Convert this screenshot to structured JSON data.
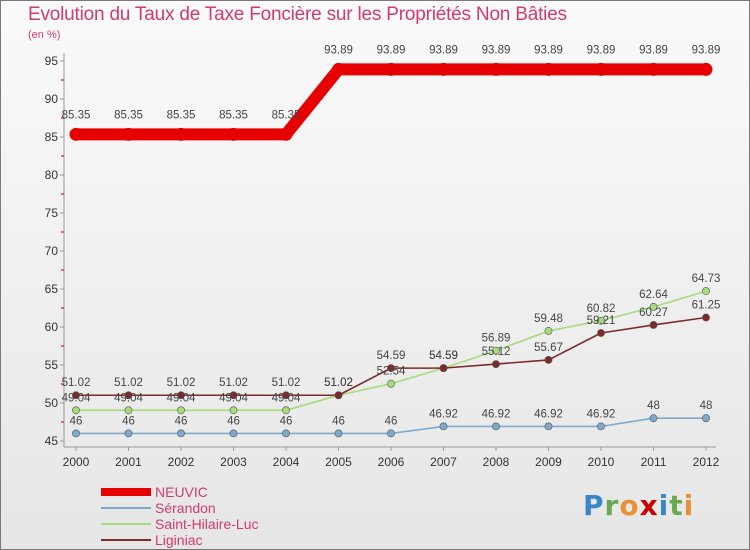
{
  "header": {
    "title": "Evolution du Taux de Taxe Foncière sur les Propriétés Non Bâties",
    "subtitle": "(en %)"
  },
  "logo": {
    "letters": [
      "P",
      "r",
      "o",
      "x",
      "i",
      "t",
      "i"
    ],
    "colors": [
      "#3a86c8",
      "#6aa84f",
      "#e69138",
      "#cc0000",
      "#3a86c8",
      "#6aa84f",
      "#e69138"
    ]
  },
  "chart_data": {
    "type": "line",
    "title": "Evolution du Taux de Taxe Foncière sur les Propriétés Non Bâties",
    "ylabel": "(en %)",
    "xlabel": "",
    "ylim": [
      45,
      95
    ],
    "yticks": [
      "45",
      "50",
      "55",
      "60",
      "65",
      "70",
      "75",
      "80",
      "85",
      "90",
      "95"
    ],
    "categories": [
      "2000",
      "2001",
      "2002",
      "2003",
      "2004",
      "2005",
      "2006",
      "2007",
      "2008",
      "2009",
      "2010",
      "2011",
      "2012"
    ],
    "series": [
      {
        "name": "NEUVIC",
        "color": "#e60000",
        "values": [
          85.35,
          85.35,
          85.35,
          85.35,
          85.35,
          93.89,
          93.89,
          93.89,
          93.89,
          93.89,
          93.89,
          93.89,
          93.89
        ],
        "labels": [
          "85.35",
          "85.35",
          "85.35",
          "85.35",
          "85.35",
          "93.89",
          "93.89",
          "93.89",
          "93.89",
          "93.89",
          "93.89",
          "93.89",
          "93.89"
        ]
      },
      {
        "name": "Sérandon",
        "color": "#7ea9cf",
        "values": [
          46,
          46,
          46,
          46,
          46,
          46,
          46,
          46.92,
          46.92,
          46.92,
          46.92,
          48,
          48
        ],
        "labels": [
          "46",
          "46",
          "46",
          "46",
          "46",
          "46",
          "46",
          "46.92",
          "46.92",
          "46.92",
          "46.92",
          "48",
          "48"
        ]
      },
      {
        "name": "Saint-Hilaire-Luc",
        "color": "#a6dc7a",
        "values": [
          49.04,
          49.04,
          49.04,
          49.04,
          49.04,
          51.02,
          52.54,
          54.59,
          56.89,
          59.48,
          60.82,
          62.64,
          64.73
        ],
        "labels": [
          "49.04",
          "49.04",
          "49.04",
          "49.04",
          "49.04",
          "51.02",
          "52.54",
          "54.59",
          "56.89",
          "59.48",
          "60.82",
          "62.64",
          "64.73"
        ]
      },
      {
        "name": "Liginiac",
        "color": "#7b2b2b",
        "values": [
          51.02,
          51.02,
          51.02,
          51.02,
          51.02,
          51.02,
          54.59,
          54.59,
          55.12,
          55.67,
          59.21,
          60.27,
          61.25
        ],
        "labels": [
          "51.02",
          "51.02",
          "51.02",
          "51.02",
          "51.02",
          "51.02",
          "54.59",
          "54.59",
          "55.12",
          "55.67",
          "59.21",
          "60.27",
          "61.25"
        ]
      }
    ]
  }
}
